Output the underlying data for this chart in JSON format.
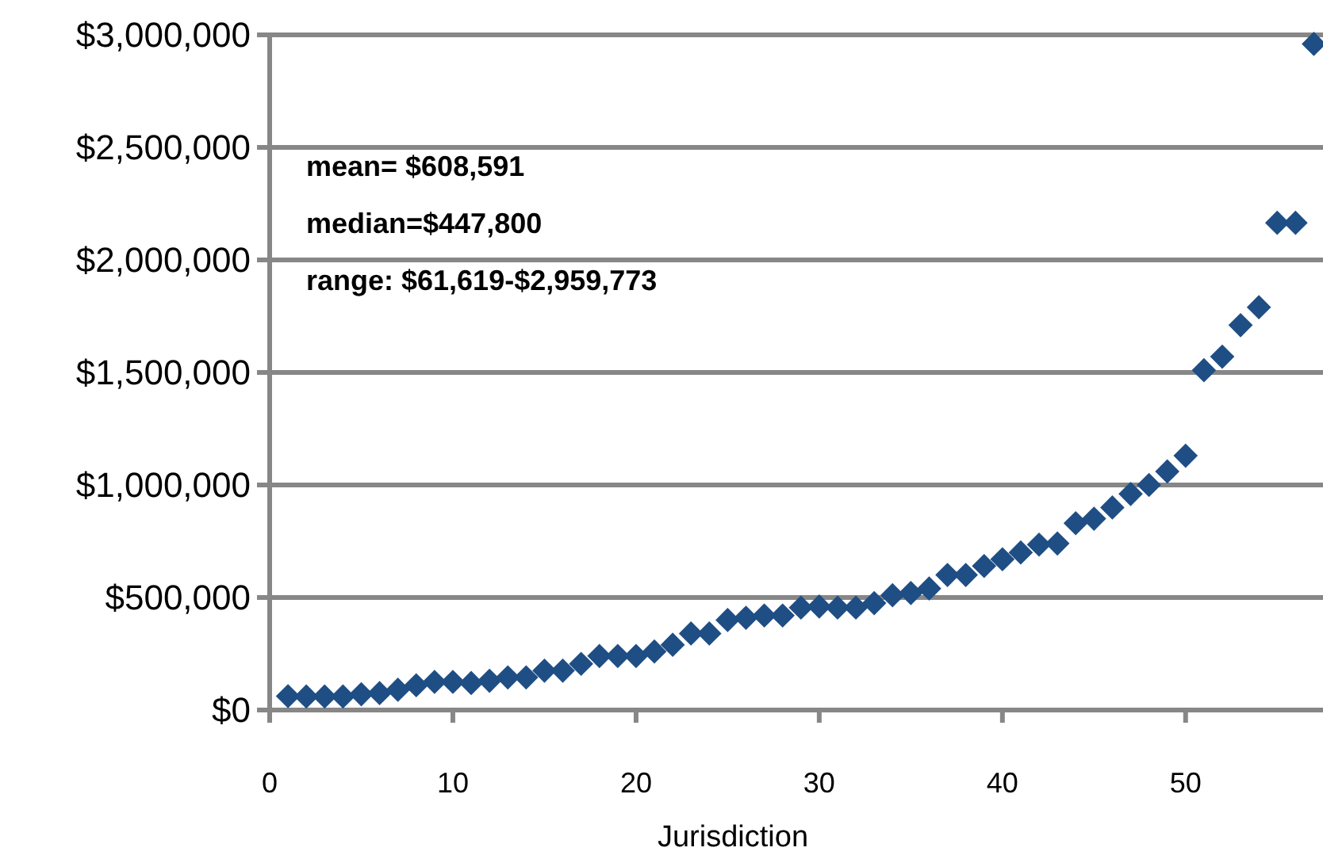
{
  "chart_data": {
    "type": "scatter",
    "xlabel": "Jurisdiction",
    "x": [
      1,
      2,
      3,
      4,
      5,
      6,
      7,
      8,
      9,
      10,
      11,
      12,
      13,
      14,
      15,
      16,
      17,
      18,
      19,
      20,
      21,
      22,
      23,
      24,
      25,
      26,
      27,
      28,
      29,
      30,
      31,
      32,
      33,
      34,
      35,
      36,
      37,
      38,
      39,
      40,
      41,
      42,
      43,
      44,
      45,
      46,
      47,
      48,
      49,
      50,
      51,
      52,
      53,
      54,
      55,
      56,
      57
    ],
    "series": [
      {
        "color": "#1f4e85",
        "values": [
          61619,
          60000,
          60000,
          60000,
          70000,
          75000,
          90000,
          110000,
          125000,
          125000,
          120000,
          130000,
          145000,
          145000,
          175000,
          175000,
          205000,
          240000,
          240000,
          240000,
          260000,
          290000,
          340000,
          340000,
          400000,
          410000,
          420000,
          420000,
          455000,
          460000,
          455000,
          455000,
          475000,
          510000,
          520000,
          540000,
          600000,
          600000,
          640000,
          670000,
          700000,
          735000,
          740000,
          830000,
          850000,
          900000,
          960000,
          1000000,
          1060000,
          1130000,
          1510000,
          1570000,
          1710000,
          1790000,
          2165000,
          2165000,
          2959773
        ]
      }
    ],
    "xlim": [
      0,
      57.5
    ],
    "xticks": [
      0,
      10,
      20,
      30,
      40,
      50
    ],
    "ylim": [
      0,
      3000000
    ],
    "yticks": [
      {
        "value": 0,
        "label": "$0"
      },
      {
        "value": 500000,
        "label": "$500,000"
      },
      {
        "value": 1000000,
        "label": "$1,000,000"
      },
      {
        "value": 1500000,
        "label": "$1,500,000"
      },
      {
        "value": 2000000,
        "label": "$2,000,000"
      },
      {
        "value": 2500000,
        "label": "$2,500,000"
      },
      {
        "value": 3000000,
        "label": "$3,000,000"
      }
    ],
    "grid": "y",
    "marker": "diamond",
    "annotations": [
      "mean= $608,591",
      "median=$447,800",
      "range: $61,619-$2,959,773"
    ]
  }
}
